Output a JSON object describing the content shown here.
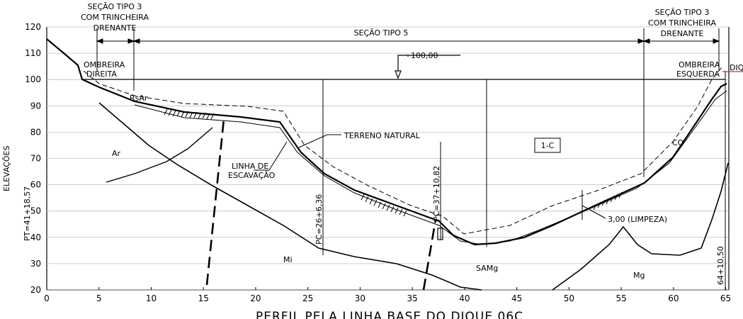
{
  "drawing": {
    "title": "PERFIL PELA LINHA BASE DO DIQUE 06C",
    "ylabel": "ELEVAÇÕES",
    "x_ticks": [
      "0",
      "5",
      "10",
      "15",
      "20",
      "25",
      "30",
      "35",
      "40",
      "45",
      "50",
      "55",
      "60",
      "65"
    ],
    "y_ticks": [
      "20",
      "30",
      "40",
      "50",
      "60",
      "70",
      "80",
      "90",
      "100",
      "110",
      "120"
    ],
    "sections": {
      "left_line1": "SEÇÃO TIPO 3",
      "left_line2": "COM TRINCHEIRA",
      "left_line3": "DRENANTE",
      "middle": "SEÇÃO TIPO 5",
      "right_line1": "SEÇÃO TIPO 3",
      "right_line2": "COM TRINCHEIRA",
      "right_line3": "DRENANTE"
    },
    "crest_elevation": "100,00",
    "labels": {
      "ombreira_direita_1": "OMBREIRA",
      "ombreira_direita_2": "DIREITA",
      "ombreira_esquerda_1": "OMBREIRA",
      "ombreira_esquerda_2": "ESQUERDA",
      "dique_fragment": "DIQ",
      "terreno_natural": "TERRENO NATURAL",
      "linha_escavacao_1": "LINHA DE",
      "linha_escavacao_2": "ESCAVAÇÃO",
      "limpeza": "3,00 (LIMPEZA)",
      "box_1c": "1-C",
      "pt": "PT=41+18,57",
      "pc_26": "PC=26+6,36",
      "pc_37": "PC=37+10,82",
      "st_64": "64+10,50",
      "soil_rsar": "RsAr",
      "soil_ar": "Ar",
      "soil_mi": "Mi",
      "soil_samg": "SAMg",
      "soil_mg": "Mg",
      "soil_co": "CO"
    }
  }
}
